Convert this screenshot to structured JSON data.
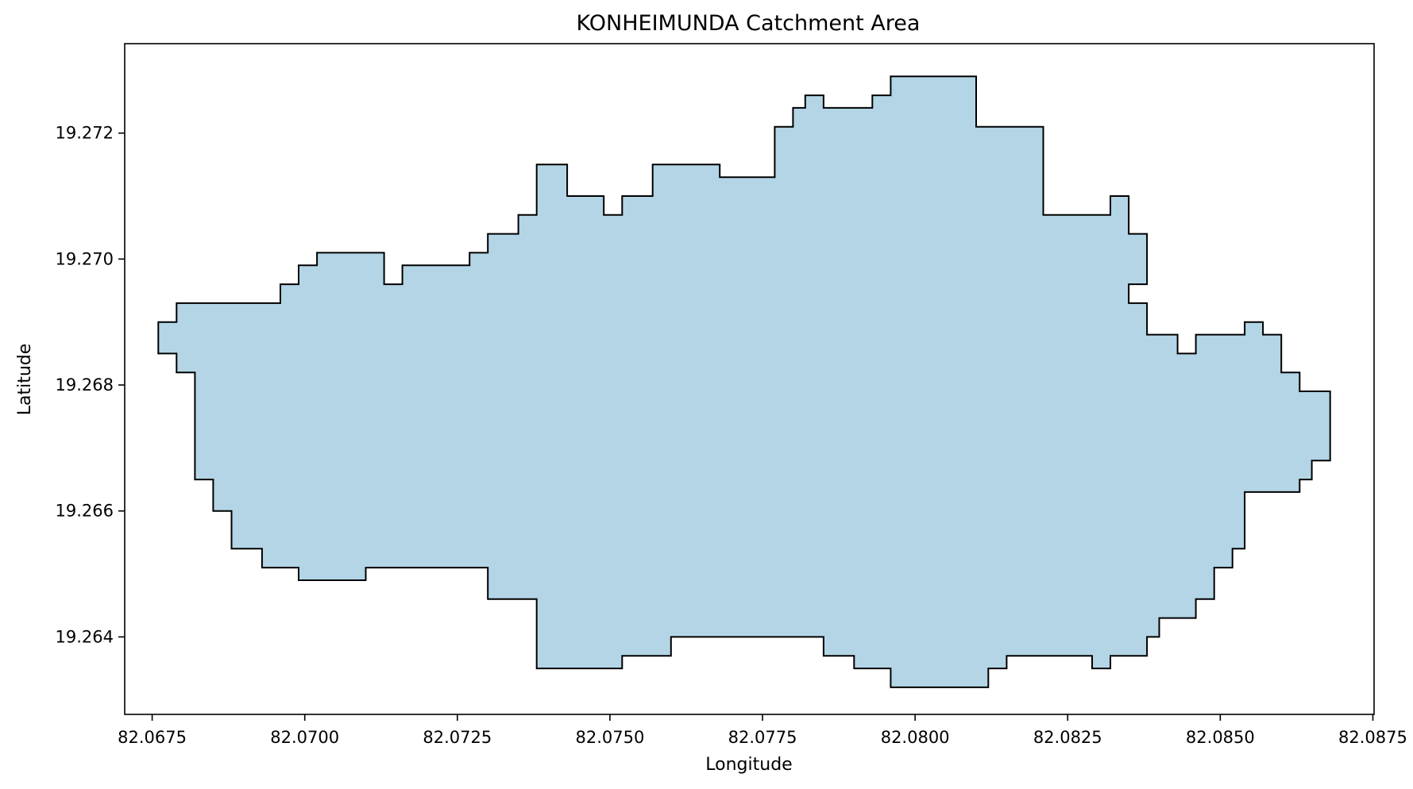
{
  "title": "KONHEIMUNDA Catchment Area",
  "chart_data": {
    "type": "area",
    "title": "KONHEIMUNDA Catchment Area",
    "xlabel": "Longitude",
    "ylabel": "Latitude",
    "xlim": [
      82.06705,
      82.08752
    ],
    "ylim": [
      19.26277,
      19.27342
    ],
    "x_ticks": [
      82.0675,
      82.07,
      82.0725,
      82.075,
      82.0775,
      82.08,
      82.0825,
      82.085,
      82.0875
    ],
    "x_tick_labels": [
      "82.0675",
      "82.0700",
      "82.0725",
      "82.0750",
      "82.0775",
      "82.0800",
      "82.0825",
      "82.0850",
      "82.0875"
    ],
    "y_ticks": [
      19.264,
      19.266,
      19.268,
      19.27,
      19.272
    ],
    "y_tick_labels": [
      "19.264",
      "19.266",
      "19.268",
      "19.270",
      "19.272"
    ],
    "grid": false,
    "fill_color": "#b3d5e6",
    "edge_color": "#000000",
    "boundary": [
      [
        82.0676,
        19.269
      ],
      [
        82.0679,
        19.269
      ],
      [
        82.0679,
        19.2693
      ],
      [
        82.0696,
        19.2693
      ],
      [
        82.0696,
        19.2696
      ],
      [
        82.0699,
        19.2696
      ],
      [
        82.0699,
        19.2699
      ],
      [
        82.0702,
        19.2699
      ],
      [
        82.0702,
        19.2701
      ],
      [
        82.0713,
        19.2701
      ],
      [
        82.0713,
        19.2696
      ],
      [
        82.0716,
        19.2696
      ],
      [
        82.0716,
        19.2699
      ],
      [
        82.0727,
        19.2699
      ],
      [
        82.0727,
        19.2701
      ],
      [
        82.073,
        19.2701
      ],
      [
        82.073,
        19.2704
      ],
      [
        82.0735,
        19.2704
      ],
      [
        82.0735,
        19.2707
      ],
      [
        82.0738,
        19.2707
      ],
      [
        82.0738,
        19.2715
      ],
      [
        82.0743,
        19.2715
      ],
      [
        82.0743,
        19.271
      ],
      [
        82.0749,
        19.271
      ],
      [
        82.0749,
        19.2707
      ],
      [
        82.0752,
        19.2707
      ],
      [
        82.0752,
        19.271
      ],
      [
        82.0757,
        19.271
      ],
      [
        82.0757,
        19.2715
      ],
      [
        82.0768,
        19.2715
      ],
      [
        82.0768,
        19.2713
      ],
      [
        82.0777,
        19.2713
      ],
      [
        82.0777,
        19.2721
      ],
      [
        82.078,
        19.2721
      ],
      [
        82.078,
        19.2724
      ],
      [
        82.0782,
        19.2724
      ],
      [
        82.0782,
        19.2726
      ],
      [
        82.0785,
        19.2726
      ],
      [
        82.0785,
        19.2724
      ],
      [
        82.0793,
        19.2724
      ],
      [
        82.0793,
        19.2726
      ],
      [
        82.0796,
        19.2726
      ],
      [
        82.0796,
        19.2729
      ],
      [
        82.081,
        19.2729
      ],
      [
        82.081,
        19.2721
      ],
      [
        82.0821,
        19.2721
      ],
      [
        82.0821,
        19.2707
      ],
      [
        82.0832,
        19.2707
      ],
      [
        82.0832,
        19.271
      ],
      [
        82.0835,
        19.271
      ],
      [
        82.0835,
        19.2704
      ],
      [
        82.0838,
        19.2704
      ],
      [
        82.0838,
        19.2696
      ],
      [
        82.0835,
        19.2696
      ],
      [
        82.0835,
        19.2693
      ],
      [
        82.0838,
        19.2693
      ],
      [
        82.0838,
        19.2688
      ],
      [
        82.0843,
        19.2688
      ],
      [
        82.0843,
        19.2685
      ],
      [
        82.0846,
        19.2685
      ],
      [
        82.0846,
        19.2688
      ],
      [
        82.0854,
        19.2688
      ],
      [
        82.0854,
        19.269
      ],
      [
        82.0857,
        19.269
      ],
      [
        82.0857,
        19.2688
      ],
      [
        82.086,
        19.2688
      ],
      [
        82.086,
        19.2682
      ],
      [
        82.0863,
        19.2682
      ],
      [
        82.0863,
        19.2679
      ],
      [
        82.0868,
        19.2679
      ],
      [
        82.0868,
        19.2668
      ],
      [
        82.0865,
        19.2668
      ],
      [
        82.0865,
        19.2665
      ],
      [
        82.0863,
        19.2665
      ],
      [
        82.0863,
        19.2663
      ],
      [
        82.0854,
        19.2663
      ],
      [
        82.0854,
        19.2654
      ],
      [
        82.0852,
        19.2654
      ],
      [
        82.0852,
        19.2651
      ],
      [
        82.0849,
        19.2651
      ],
      [
        82.0849,
        19.2646
      ],
      [
        82.0846,
        19.2646
      ],
      [
        82.0846,
        19.2643
      ],
      [
        82.084,
        19.2643
      ],
      [
        82.084,
        19.264
      ],
      [
        82.0838,
        19.264
      ],
      [
        82.0838,
        19.2637
      ],
      [
        82.0832,
        19.2637
      ],
      [
        82.0832,
        19.2635
      ],
      [
        82.0829,
        19.2635
      ],
      [
        82.0829,
        19.2637
      ],
      [
        82.0815,
        19.2637
      ],
      [
        82.0815,
        19.2635
      ],
      [
        82.0812,
        19.2635
      ],
      [
        82.0812,
        19.2632
      ],
      [
        82.0796,
        19.2632
      ],
      [
        82.0796,
        19.2635
      ],
      [
        82.079,
        19.2635
      ],
      [
        82.079,
        19.2637
      ],
      [
        82.0785,
        19.2637
      ],
      [
        82.0785,
        19.264
      ],
      [
        82.076,
        19.264
      ],
      [
        82.076,
        19.2637
      ],
      [
        82.0752,
        19.2637
      ],
      [
        82.0752,
        19.2635
      ],
      [
        82.0738,
        19.2635
      ],
      [
        82.0738,
        19.2646
      ],
      [
        82.073,
        19.2646
      ],
      [
        82.073,
        19.2651
      ],
      [
        82.071,
        19.2651
      ],
      [
        82.071,
        19.2649
      ],
      [
        82.0699,
        19.2649
      ],
      [
        82.0699,
        19.2651
      ],
      [
        82.0693,
        19.2651
      ],
      [
        82.0693,
        19.2654
      ],
      [
        82.0688,
        19.2654
      ],
      [
        82.0688,
        19.266
      ],
      [
        82.0685,
        19.266
      ],
      [
        82.0685,
        19.2665
      ],
      [
        82.0682,
        19.2665
      ],
      [
        82.0682,
        19.2682
      ],
      [
        82.0679,
        19.2682
      ],
      [
        82.0679,
        19.2685
      ],
      [
        82.0676,
        19.2685
      ]
    ]
  }
}
